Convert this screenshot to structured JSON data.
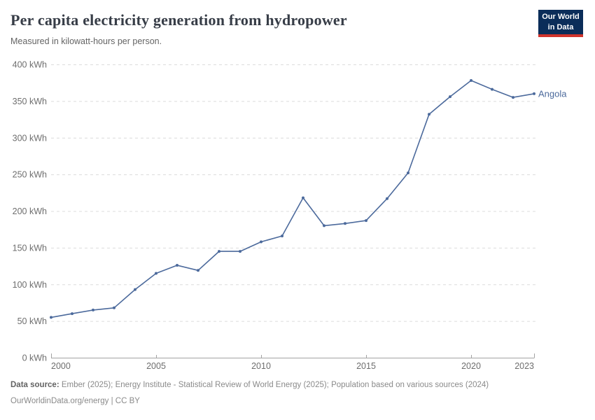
{
  "header": {
    "logo": {
      "line1": "Our World",
      "line2": "in Data",
      "bg_color": "#0B2D59",
      "accent_color": "#D0342C"
    }
  },
  "chart_data": {
    "type": "line",
    "title": "Per capita electricity generation from hydropower",
    "subtitle": "Measured in kilowatt-hours per person.",
    "xlabel": "",
    "ylabel": "kWh",
    "unit": "kWh",
    "xlim": [
      2000,
      2023
    ],
    "ylim": [
      0,
      400
    ],
    "grid": "horizontal-dashed",
    "legend_position": "end-of-line",
    "x": [
      2000,
      2001,
      2002,
      2003,
      2004,
      2005,
      2006,
      2007,
      2008,
      2009,
      2010,
      2011,
      2012,
      2013,
      2014,
      2015,
      2016,
      2017,
      2018,
      2019,
      2020,
      2021,
      2022,
      2023
    ],
    "series": [
      {
        "name": "Angola",
        "color": "#4C6A9C",
        "values": [
          55,
          60,
          65,
          68,
          93,
          115,
          126,
          119,
          145,
          145,
          158,
          166,
          218,
          180,
          183,
          187,
          217,
          252,
          332,
          356,
          378,
          366,
          355,
          360
        ]
      }
    ],
    "x_ticks": [
      {
        "value": 2000,
        "label": "2000",
        "align": "start"
      },
      {
        "value": 2005,
        "label": "2005",
        "align": "middle"
      },
      {
        "value": 2010,
        "label": "2010",
        "align": "middle"
      },
      {
        "value": 2015,
        "label": "2015",
        "align": "middle"
      },
      {
        "value": 2020,
        "label": "2020",
        "align": "middle"
      },
      {
        "value": 2023,
        "label": "2023",
        "align": "end"
      }
    ],
    "y_ticks": [
      {
        "value": 0,
        "label": "0 kWh"
      },
      {
        "value": 50,
        "label": "50 kWh"
      },
      {
        "value": 100,
        "label": "100 kWh"
      },
      {
        "value": 150,
        "label": "150 kWh"
      },
      {
        "value": 200,
        "label": "200 kWh"
      },
      {
        "value": 250,
        "label": "250 kWh"
      },
      {
        "value": 300,
        "label": "300 kWh"
      },
      {
        "value": 350,
        "label": "350 kWh"
      },
      {
        "value": 400,
        "label": "400 kWh"
      }
    ],
    "colors": {
      "line": "#4C6A9C",
      "gridline": "#dcdcdc",
      "axis_line": "#a3a3a3",
      "tick_label": "#6e6e6e"
    }
  },
  "footer": {
    "datasource_label": "Data source:",
    "datasource_text": "Ember (2025); Energy Institute - Statistical Review of World Energy (2025); Population based on various sources (2024)",
    "license_line": "OurWorldinData.org/energy | CC BY"
  }
}
